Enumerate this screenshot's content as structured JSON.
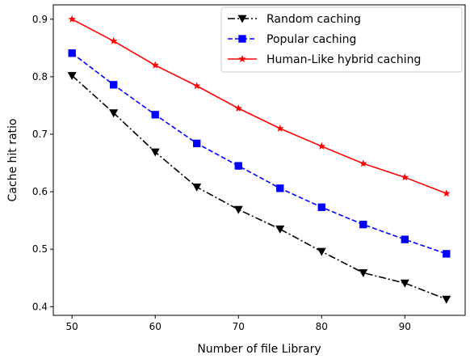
{
  "chart_data": {
    "type": "line",
    "xlabel": "Number of file Library",
    "ylabel": "Cache hit ratio",
    "xlim": [
      47.75,
      97.25
    ],
    "ylim": [
      0.385,
      0.925
    ],
    "xticks": [
      50,
      60,
      70,
      80,
      90
    ],
    "yticks": [
      0.4,
      0.5,
      0.6,
      0.7,
      0.8,
      0.9
    ],
    "x": [
      50,
      55,
      60,
      65,
      70,
      75,
      80,
      85,
      90,
      95
    ],
    "grid": false,
    "legend_position": "top-right",
    "series": [
      {
        "name": "Random caching",
        "values": [
          0.802,
          0.737,
          0.669,
          0.608,
          0.569,
          0.535,
          0.496,
          0.459,
          0.441,
          0.413
        ],
        "color": "#000000",
        "line_style": "dash-dot",
        "marker": "triangle-down"
      },
      {
        "name": "Popular caching",
        "values": [
          0.841,
          0.786,
          0.734,
          0.684,
          0.645,
          0.606,
          0.573,
          0.543,
          0.517,
          0.492
        ],
        "color": "#0000ff",
        "line_style": "dashed",
        "marker": "square"
      },
      {
        "name": "Human-Like hybrid caching",
        "values": [
          0.9,
          0.862,
          0.82,
          0.784,
          0.745,
          0.71,
          0.679,
          0.649,
          0.625,
          0.597
        ],
        "color": "#ff0000",
        "line_style": "solid",
        "marker": "star"
      }
    ]
  }
}
